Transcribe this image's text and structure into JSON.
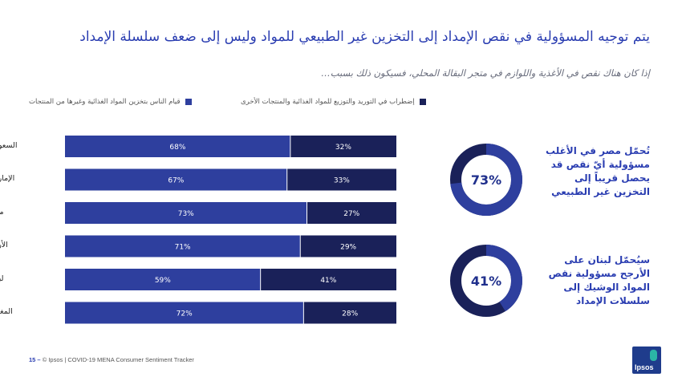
{
  "title": "يتم توجيه المسؤولية في نقص الإمداد إلى التخزين غير الطبيعي للمواد وليس إلى ضعف سلسلة الإمداد",
  "subtitle": "إذا كان هناك نقص في الأغذية واللوازم في متجر البقالة المحلي، فسيكون ذلك بسبب…",
  "colors": {
    "series1": "#2e3f9e",
    "series2": "#1a2159",
    "donut_track": "#1a2159",
    "donut_fill": "#2e3f9e"
  },
  "chart_data": {
    "type": "bar",
    "orientation": "horizontal",
    "stacked": true,
    "categories": [
      "السعودية",
      "الإمارات",
      "مصر",
      "الأردن",
      "لبنان",
      "المغرب"
    ],
    "series": [
      {
        "name": "قيام الناس بتخزين المواد الغذائية وغيرها من المنتجات",
        "values": [
          68,
          67,
          73,
          71,
          59,
          72
        ],
        "labels": [
          "68%",
          "67%",
          "73%",
          "71%",
          "59%",
          "72%"
        ]
      },
      {
        "name": "إضطراب في التوريد والتوزيع للمواد الغذائية والمنتجات الأخرى",
        "values": [
          32,
          33,
          27,
          29,
          41,
          28
        ],
        "labels": [
          "32%",
          "33%",
          "27%",
          "29%",
          "41%",
          "28%"
        ]
      }
    ],
    "xlim": [
      0,
      100
    ],
    "legend": "top"
  },
  "donuts": [
    {
      "value": 73,
      "label": "73%",
      "text": "تُحمّل مصر في الأغلب مسؤولية أيّ نقص قد يحصل قريباً إلى التخزين غير الطبيعي"
    },
    {
      "value": 41,
      "label": "41%",
      "text": "سيُحمّل لبنان على الأرجح مسؤولية نقص المواد الوشيك إلى سلسلات الإمداد"
    }
  ],
  "footer": {
    "page": "15 –",
    "text": "© Ipsos | COVID-19 MENA Consumer Sentiment Tracker"
  },
  "logo": {
    "text": "Ipsos"
  }
}
